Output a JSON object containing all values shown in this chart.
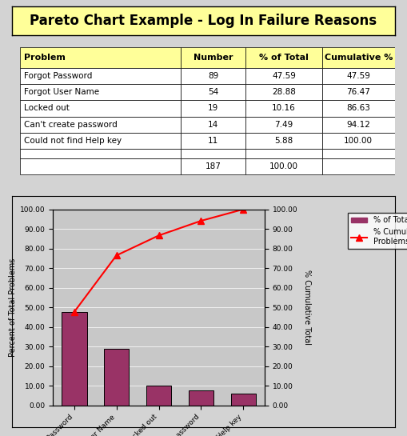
{
  "title": "Pareto Chart Example - Log In Failure Reasons",
  "title_bg": "#FFFF99",
  "table_header": [
    "Problem",
    "Number",
    "% of Total",
    "Cumulative %"
  ],
  "table_header_bg": "#FFFF99",
  "problems": [
    "Forgot Password",
    "Forgot User Name",
    "Locked out",
    "Can't create password",
    "Could not find Help key"
  ],
  "numbers": [
    89,
    54,
    19,
    14,
    11
  ],
  "pct_total": [
    47.59,
    28.88,
    10.16,
    7.49,
    5.88
  ],
  "cumulative": [
    47.59,
    76.47,
    86.63,
    94.12,
    100.0
  ],
  "total_number": 187,
  "total_pct": 100.0,
  "bar_color": "#993366",
  "bar_edge_color": "#000000",
  "line_color": "#FF0000",
  "marker_style": "^",
  "marker_color": "#FF0000",
  "chart_bg": "#C0C0C0",
  "plot_bg": "#D3D3D3",
  "ylabel_left": "Percent of Total Problems",
  "ylabel_right": "% Cumulative Total",
  "ylim": [
    0,
    100
  ],
  "yticks": [
    0,
    10,
    20,
    30,
    40,
    50,
    60,
    70,
    80,
    90,
    100
  ],
  "ytick_labels": [
    "0.00",
    "10.00",
    "20.00",
    "30.00",
    "40.00",
    "50.00",
    "60.00",
    "70.00",
    "80.00",
    "90.00",
    "100.00"
  ],
  "legend_bar_label": "% of Total",
  "legend_line_label": "% Cumulative of\nProblems",
  "outer_bg": "#D3D3D3",
  "cell_bg": "#FFFFFF",
  "grid_color": "#808080"
}
